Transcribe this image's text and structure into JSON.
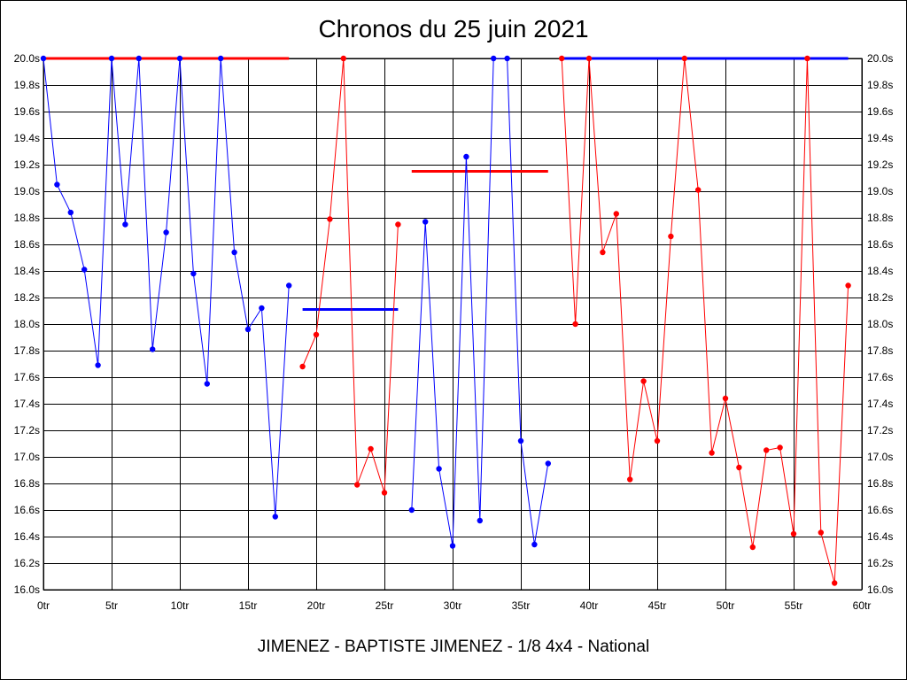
{
  "chart_data": {
    "type": "line",
    "title": "Chronos du 25 juin 2021",
    "footer": "JIMENEZ - BAPTISTE JIMENEZ - 1/8 4x4 - National",
    "xlim": [
      0,
      60
    ],
    "ylim": [
      16.0,
      20.0
    ],
    "x_tick_step": 5,
    "y_tick_step": 0.2,
    "x_ticks": [
      "0tr",
      "5tr",
      "10tr",
      "15tr",
      "20tr",
      "25tr",
      "30tr",
      "35tr",
      "40tr",
      "45tr",
      "50tr",
      "55tr",
      "60tr"
    ],
    "y_ticks": [
      "16.0s",
      "16.2s",
      "16.4s",
      "16.6s",
      "16.8s",
      "17.0s",
      "17.2s",
      "17.4s",
      "17.6s",
      "17.8s",
      "18.0s",
      "18.2s",
      "18.4s",
      "18.6s",
      "18.8s",
      "19.0s",
      "19.2s",
      "19.4s",
      "19.6s",
      "19.8s",
      "20.0s"
    ],
    "grid": true,
    "colors": {
      "blue": "#0000ff",
      "red": "#ff0000"
    },
    "series": [
      {
        "color": "blue",
        "points": [
          [
            0,
            20.0
          ],
          [
            1,
            19.05
          ],
          [
            2,
            18.84
          ],
          [
            3,
            18.41
          ],
          [
            4,
            17.69
          ],
          [
            5,
            20.0
          ],
          [
            6,
            18.75
          ],
          [
            7,
            20.0
          ],
          [
            8,
            17.81
          ],
          [
            9,
            18.69
          ],
          [
            10,
            20.0
          ],
          [
            11,
            18.38
          ],
          [
            12,
            17.55
          ],
          [
            13,
            20.0
          ],
          [
            14,
            18.54
          ],
          [
            15,
            17.96
          ],
          [
            16,
            18.12
          ],
          [
            17,
            16.55
          ],
          [
            18,
            18.29
          ]
        ]
      },
      {
        "color": "red",
        "points": [
          [
            19,
            17.68
          ],
          [
            20,
            17.92
          ],
          [
            21,
            18.79
          ],
          [
            22,
            20.0
          ],
          [
            23,
            16.79
          ],
          [
            24,
            17.06
          ],
          [
            25,
            16.73
          ],
          [
            26,
            18.75
          ]
        ]
      },
      {
        "color": "blue",
        "points": [
          [
            27,
            16.6
          ],
          [
            28,
            18.77
          ],
          [
            29,
            16.91
          ],
          [
            30,
            16.33
          ],
          [
            31,
            19.26
          ],
          [
            32,
            16.52
          ],
          [
            33,
            20.0
          ],
          [
            34,
            20.0
          ],
          [
            35,
            17.12
          ],
          [
            36,
            16.34
          ],
          [
            37,
            16.95
          ]
        ]
      },
      {
        "color": "red",
        "points": [
          [
            38,
            20.0
          ],
          [
            39,
            18.0
          ],
          [
            40,
            20.0
          ],
          [
            41,
            18.54
          ],
          [
            42,
            18.83
          ],
          [
            43,
            16.83
          ],
          [
            44,
            17.57
          ],
          [
            45,
            17.12
          ],
          [
            46,
            18.66
          ],
          [
            47,
            20.0
          ],
          [
            48,
            19.01
          ],
          [
            49,
            17.03
          ],
          [
            50,
            17.44
          ],
          [
            51,
            16.92
          ],
          [
            52,
            16.32
          ],
          [
            53,
            17.05
          ],
          [
            54,
            17.07
          ],
          [
            55,
            16.42
          ],
          [
            56,
            20.0
          ],
          [
            57,
            16.43
          ],
          [
            58,
            16.05
          ],
          [
            59,
            18.29
          ]
        ]
      }
    ],
    "averages": [
      {
        "color": "red",
        "x": [
          0,
          18
        ],
        "y": 20.0
      },
      {
        "color": "blue",
        "x": [
          19,
          26
        ],
        "y": 18.11
      },
      {
        "color": "red",
        "x": [
          27,
          37
        ],
        "y": 19.15
      },
      {
        "color": "blue",
        "x": [
          38,
          59
        ],
        "y": 20.0
      }
    ]
  }
}
